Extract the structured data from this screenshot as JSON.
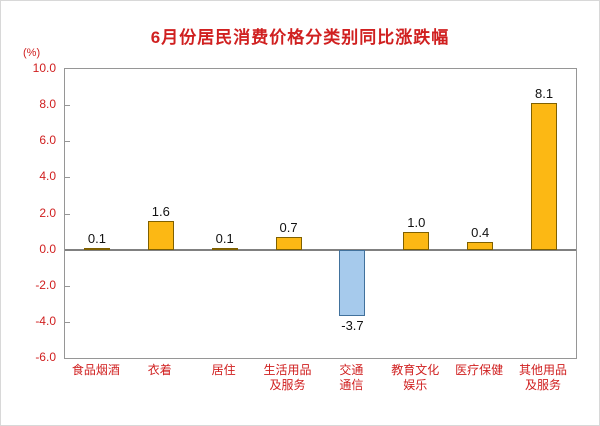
{
  "chart_data": {
    "type": "bar",
    "title": "6月份居民消费价格分类别同比涨跌幅",
    "unit_label": "(%)",
    "categories": [
      "食品烟酒",
      "衣着",
      "居住",
      "生活用品及服务",
      "交通通信",
      "教育文化娱乐",
      "医疗保健",
      "其他用品及服务"
    ],
    "category_lines": [
      [
        "食品烟酒"
      ],
      [
        "衣着"
      ],
      [
        "居住"
      ],
      [
        "生活用品",
        "及服务"
      ],
      [
        "交通",
        "通信"
      ],
      [
        "教育文化",
        "娱乐"
      ],
      [
        "医疗保健"
      ],
      [
        "其他用品",
        "及服务"
      ]
    ],
    "values": [
      0.1,
      1.6,
      0.1,
      0.7,
      -3.7,
      1.0,
      0.4,
      8.1
    ],
    "value_labels": [
      "0.1",
      "1.6",
      "0.1",
      "0.7",
      "-3.7",
      "1.0",
      "0.4",
      "8.1"
    ],
    "ylim": [
      -6.0,
      10.0
    ],
    "ytick_step": 2.0,
    "ytick_labels": [
      "10.0",
      "8.0",
      "6.0",
      "4.0",
      "2.0",
      "0.0",
      "-2.0",
      "-4.0",
      "-6.0"
    ],
    "grid": false,
    "legend": "none",
    "xlabel": "",
    "ylabel": "(%)"
  },
  "colors": {
    "title_text": "#d02020",
    "axis_text": "#d02020",
    "value_text": "#111111",
    "bar_positive_fill": "#fcb814",
    "bar_positive_border": "#7f6000",
    "bar_negative_fill": "#a6caec",
    "bar_negative_border": "#41719c",
    "plot_border": "#969696",
    "zero_line": "#808080",
    "background": "#ffffff"
  }
}
